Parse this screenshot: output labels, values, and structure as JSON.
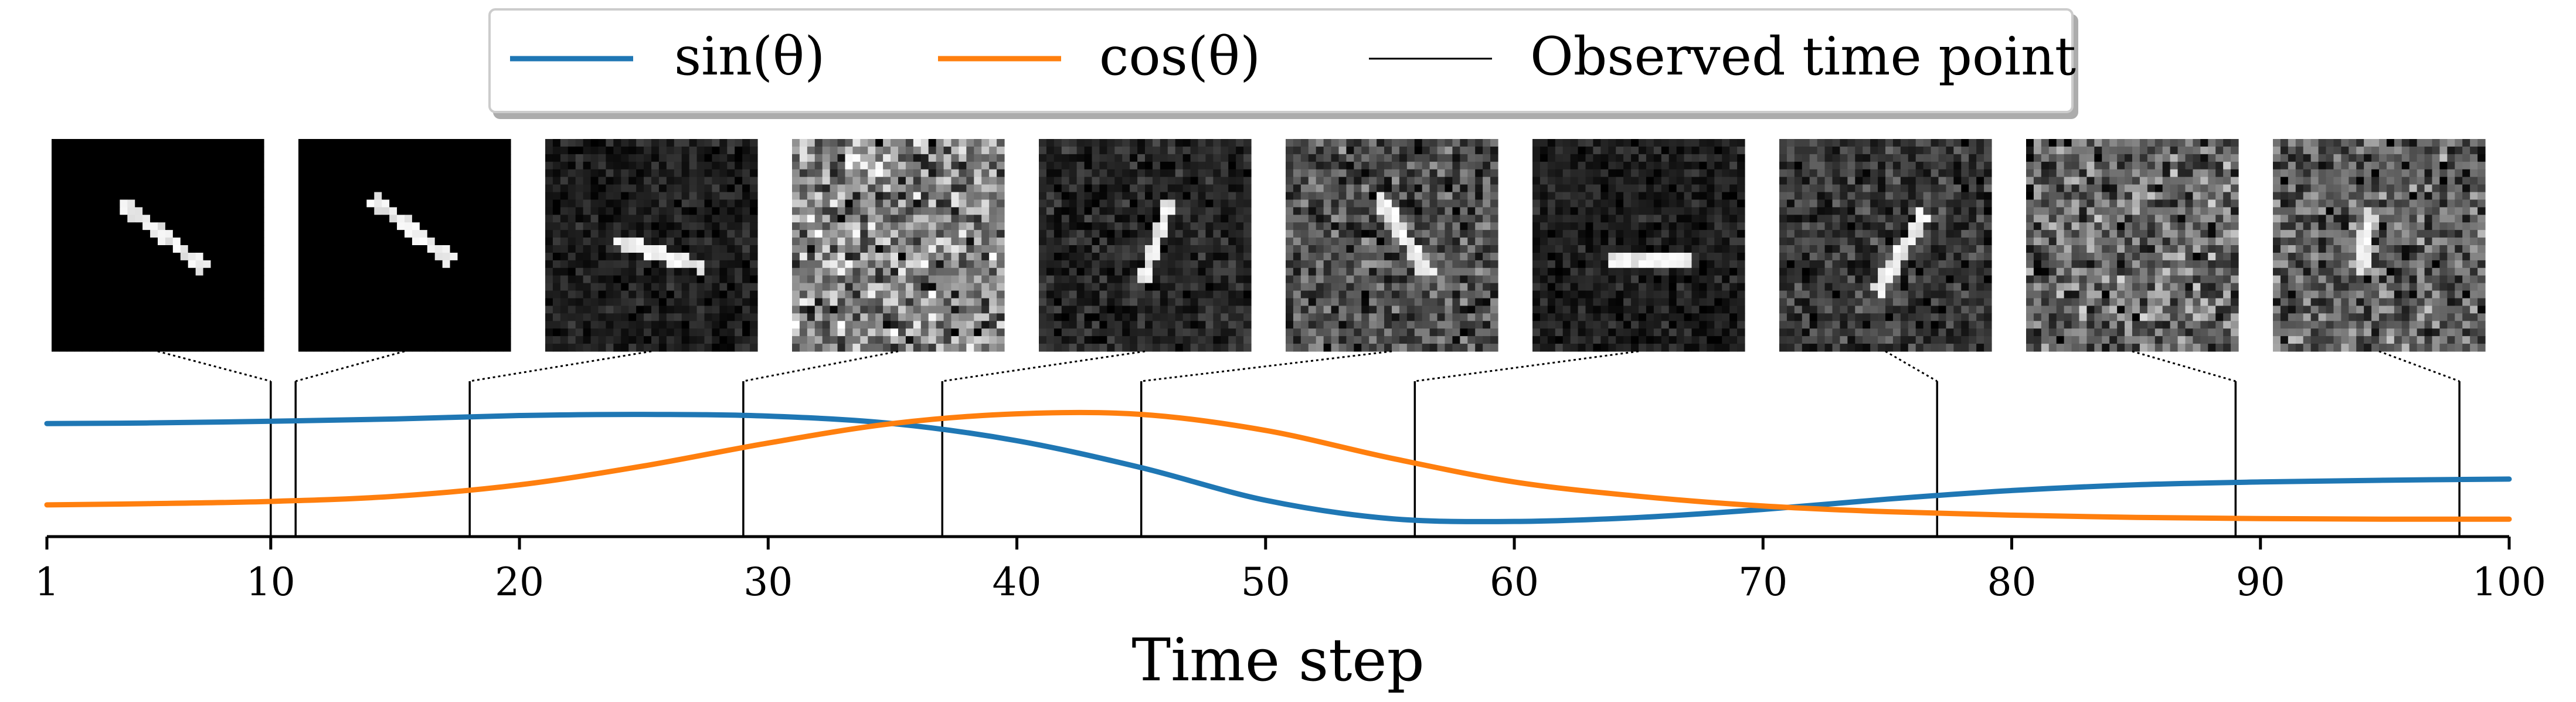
{
  "chart_data": {
    "type": "line",
    "title": "",
    "xlabel": "Time step",
    "ylabel": "",
    "xlim": [
      1,
      100
    ],
    "ylim": [
      -1.05,
      1.05
    ],
    "x_ticks": [
      1,
      10,
      20,
      30,
      40,
      50,
      60,
      70,
      80,
      90,
      100
    ],
    "grid": false,
    "legend_position": "top-center",
    "legend": [
      {
        "label": "sin(θ)",
        "kind": "line",
        "color": "#1f77b4"
      },
      {
        "label": "cos(θ)",
        "kind": "line",
        "color": "#ff7f0e"
      },
      {
        "label": "Observed time point",
        "kind": "line",
        "color": "#000000"
      }
    ],
    "x": [
      1,
      5,
      10,
      15,
      20,
      25,
      30,
      35,
      40,
      45,
      50,
      55,
      60,
      65,
      70,
      75,
      80,
      85,
      90,
      95,
      100
    ],
    "series": [
      {
        "name": "sin(θ)",
        "color": "#1f77b4",
        "values": [
          0.72,
          0.73,
          0.76,
          0.8,
          0.86,
          0.88,
          0.85,
          0.72,
          0.42,
          -0.05,
          -0.62,
          -0.94,
          -0.99,
          -0.92,
          -0.78,
          -0.6,
          -0.45,
          -0.35,
          -0.3,
          -0.27,
          -0.25
        ]
      },
      {
        "name": "cos(θ)",
        "color": "#ff7f0e",
        "values": [
          -0.7,
          -0.68,
          -0.64,
          -0.55,
          -0.35,
          -0.02,
          0.38,
          0.72,
          0.89,
          0.88,
          0.6,
          0.12,
          -0.3,
          -0.55,
          -0.72,
          -0.82,
          -0.88,
          -0.92,
          -0.94,
          -0.95,
          -0.95
        ]
      }
    ],
    "observed_time_points": [
      10,
      11,
      18,
      29,
      37,
      45,
      56,
      77,
      89,
      98
    ],
    "thumbnails": [
      {
        "time": 10,
        "noise": 0.0,
        "angle": -38,
        "length": 0.5
      },
      {
        "time": 11,
        "noise": 0.0,
        "angle": -38,
        "length": 0.5
      },
      {
        "time": 18,
        "noise": 0.25,
        "angle": -17,
        "length": 0.45
      },
      {
        "time": 29,
        "noise": 0.85,
        "angle": 0,
        "length": 0.0
      },
      {
        "time": 37,
        "noise": 0.3,
        "angle": 72,
        "length": 0.42
      },
      {
        "time": 45,
        "noise": 0.55,
        "angle": -58,
        "length": 0.45
      },
      {
        "time": 56,
        "noise": 0.25,
        "angle": 0,
        "length": 0.4
      },
      {
        "time": 77,
        "noise": 0.4,
        "angle": 58,
        "length": 0.45
      },
      {
        "time": 89,
        "noise": 0.7,
        "angle": 0,
        "length": 0.0
      },
      {
        "time": 98,
        "noise": 0.65,
        "angle": 80,
        "length": 0.3
      }
    ]
  }
}
